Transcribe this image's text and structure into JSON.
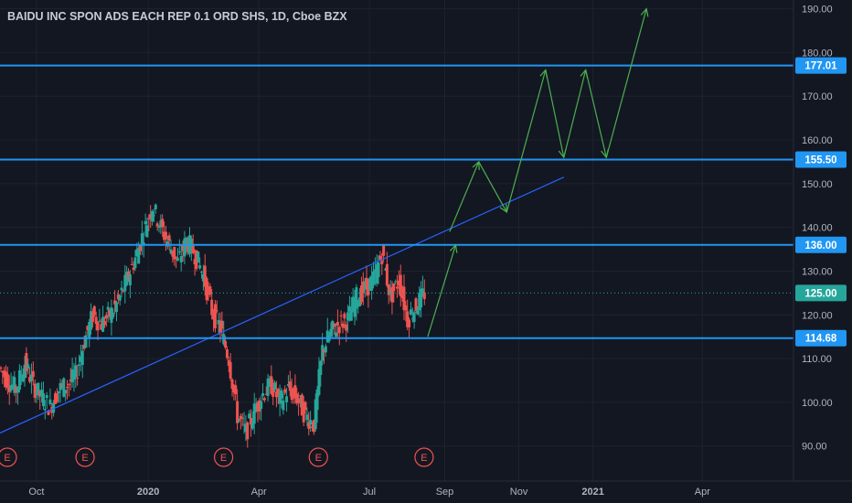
{
  "header": {
    "title": "BAIDU INC SPON ADS EACH REP 0.1 ORD SHS, 1D, Cboe BZX"
  },
  "colors": {
    "background": "#131722",
    "grid": "#1e222d",
    "axis_text": "#b2b5be",
    "candle_up": "#26a69a",
    "candle_down": "#ef5350",
    "level_line": "#2196f3",
    "trend_line": "#2962ff",
    "projection": "#4caf50",
    "label_bg": "#2196f3",
    "earnings": "#ef5350"
  },
  "chart_data": {
    "type": "candlestick",
    "title": "BAIDU INC SPON ADS EACH REP 0.1 ORD SHS, 1D, Cboe BZX",
    "y_axis": {
      "ticks": [
        "90.00",
        "100.00",
        "110.00",
        "120.00",
        "130.00",
        "140.00",
        "150.00",
        "160.00",
        "170.00",
        "180.00",
        "190.00"
      ],
      "ylim": [
        82,
        192
      ],
      "position": "right"
    },
    "x_axis": {
      "ticks": [
        "Oct",
        "2020",
        "Apr",
        "Jul",
        "Sep",
        "Nov",
        "2021",
        "Apr"
      ],
      "tick_dates": [
        "2019-10-01",
        "2020-01-01",
        "2020-04-01",
        "2020-07-01",
        "2020-09-01",
        "2020-11-01",
        "2021-01-01",
        "2021-04-01"
      ],
      "xlim": [
        "2019-09-01",
        "2021-06-15"
      ]
    },
    "grid": true,
    "horizontal_levels": [
      {
        "value": 177.01,
        "label": "177.01"
      },
      {
        "value": 155.5,
        "label": "155.50"
      },
      {
        "value": 136.0,
        "label": "136.00"
      },
      {
        "value": 114.68,
        "label": "114.68"
      }
    ],
    "last_price": {
      "value": 125.0,
      "label": "125.00"
    },
    "trend_line": [
      {
        "date": "2019-09-01",
        "value": 93.0
      },
      {
        "date": "2020-12-08",
        "value": 151.5
      }
    ],
    "projection_path": [
      {
        "date": "2020-08-18",
        "value": 115.0
      },
      {
        "date": "2020-09-10",
        "value": 136.0
      },
      {
        "date": "2020-09-05",
        "value": 139.0
      },
      {
        "date": "2020-09-29",
        "value": 155.0
      },
      {
        "date": "2020-10-22",
        "value": 143.5
      },
      {
        "date": "2020-11-23",
        "value": 176.0
      },
      {
        "date": "2020-12-08",
        "value": 156.0
      },
      {
        "date": "2020-12-26",
        "value": 176.0
      },
      {
        "date": "2021-01-12",
        "value": 156.0
      },
      {
        "date": "2021-02-14",
        "value": 190.0
      }
    ],
    "earnings_markers": [
      {
        "date": "2019-09-05",
        "label": "E"
      },
      {
        "date": "2019-11-10",
        "label": "E"
      },
      {
        "date": "2020-03-03",
        "label": "E"
      },
      {
        "date": "2020-05-20",
        "label": "E"
      },
      {
        "date": "2020-08-15",
        "label": "E"
      }
    ],
    "price_series": {
      "name": "",
      "dates": [
        "2019-09-01",
        "2019-09-08",
        "2019-09-15",
        "2019-09-22",
        "2019-09-29",
        "2019-10-06",
        "2019-10-13",
        "2019-10-20",
        "2019-10-27",
        "2019-11-03",
        "2019-11-10",
        "2019-11-17",
        "2019-11-24",
        "2019-12-01",
        "2019-12-08",
        "2019-12-15",
        "2019-12-22",
        "2019-12-29",
        "2020-01-05",
        "2020-01-12",
        "2020-01-19",
        "2020-01-26",
        "2020-02-02",
        "2020-02-09",
        "2020-02-16",
        "2020-02-23",
        "2020-03-01",
        "2020-03-08",
        "2020-03-15",
        "2020-03-22",
        "2020-03-29",
        "2020-04-05",
        "2020-04-12",
        "2020-04-19",
        "2020-04-26",
        "2020-05-03",
        "2020-05-10",
        "2020-05-17",
        "2020-05-24",
        "2020-05-31",
        "2020-06-07",
        "2020-06-14",
        "2020-06-21",
        "2020-06-28",
        "2020-07-05",
        "2020-07-12",
        "2020-07-19",
        "2020-07-26",
        "2020-08-02",
        "2020-08-09",
        "2020-08-16"
      ],
      "values": [
        108,
        105,
        103,
        109,
        104,
        101,
        99,
        103,
        104,
        106,
        114,
        120,
        118,
        120,
        123,
        128,
        133,
        139,
        145,
        140,
        136,
        132,
        137,
        134,
        129,
        121,
        117,
        110,
        97,
        93,
        98,
        102,
        104,
        100,
        103,
        101,
        97,
        95,
        112,
        116,
        118,
        119,
        124,
        126,
        128,
        134,
        124,
        128,
        119,
        122,
        125
      ]
    }
  }
}
